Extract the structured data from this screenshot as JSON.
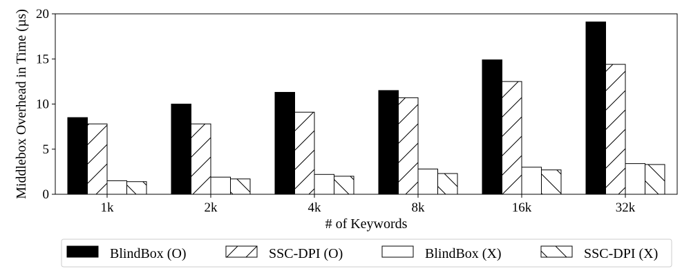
{
  "chart_data": {
    "type": "bar",
    "title": "",
    "xlabel": "# of Keywords",
    "ylabel": "Middlebox Overhead in Time (µs)",
    "categories": [
      "1k",
      "2k",
      "4k",
      "8k",
      "16k",
      "32k"
    ],
    "ylim": [
      0,
      20
    ],
    "yticks": [
      0,
      5,
      10,
      15,
      20
    ],
    "grid": false,
    "legend_position": "bottom",
    "series": [
      {
        "name": "BlindBox (O)",
        "values": [
          8.5,
          10.0,
          11.3,
          11.5,
          14.9,
          19.1
        ],
        "fill": "#000000",
        "hatch": "none"
      },
      {
        "name": "SSC-DPI (O)",
        "values": [
          7.8,
          7.8,
          9.1,
          10.7,
          12.5,
          14.4
        ],
        "fill": "#ffffff",
        "hatch": "forward"
      },
      {
        "name": "BlindBox (X)",
        "values": [
          1.5,
          1.9,
          2.2,
          2.8,
          3.0,
          3.4
        ],
        "fill": "#ffffff",
        "hatch": "none"
      },
      {
        "name": "SSC-DPI (X)",
        "values": [
          1.4,
          1.7,
          2.0,
          2.3,
          2.7,
          3.3
        ],
        "fill": "#ffffff",
        "hatch": "back"
      }
    ]
  }
}
